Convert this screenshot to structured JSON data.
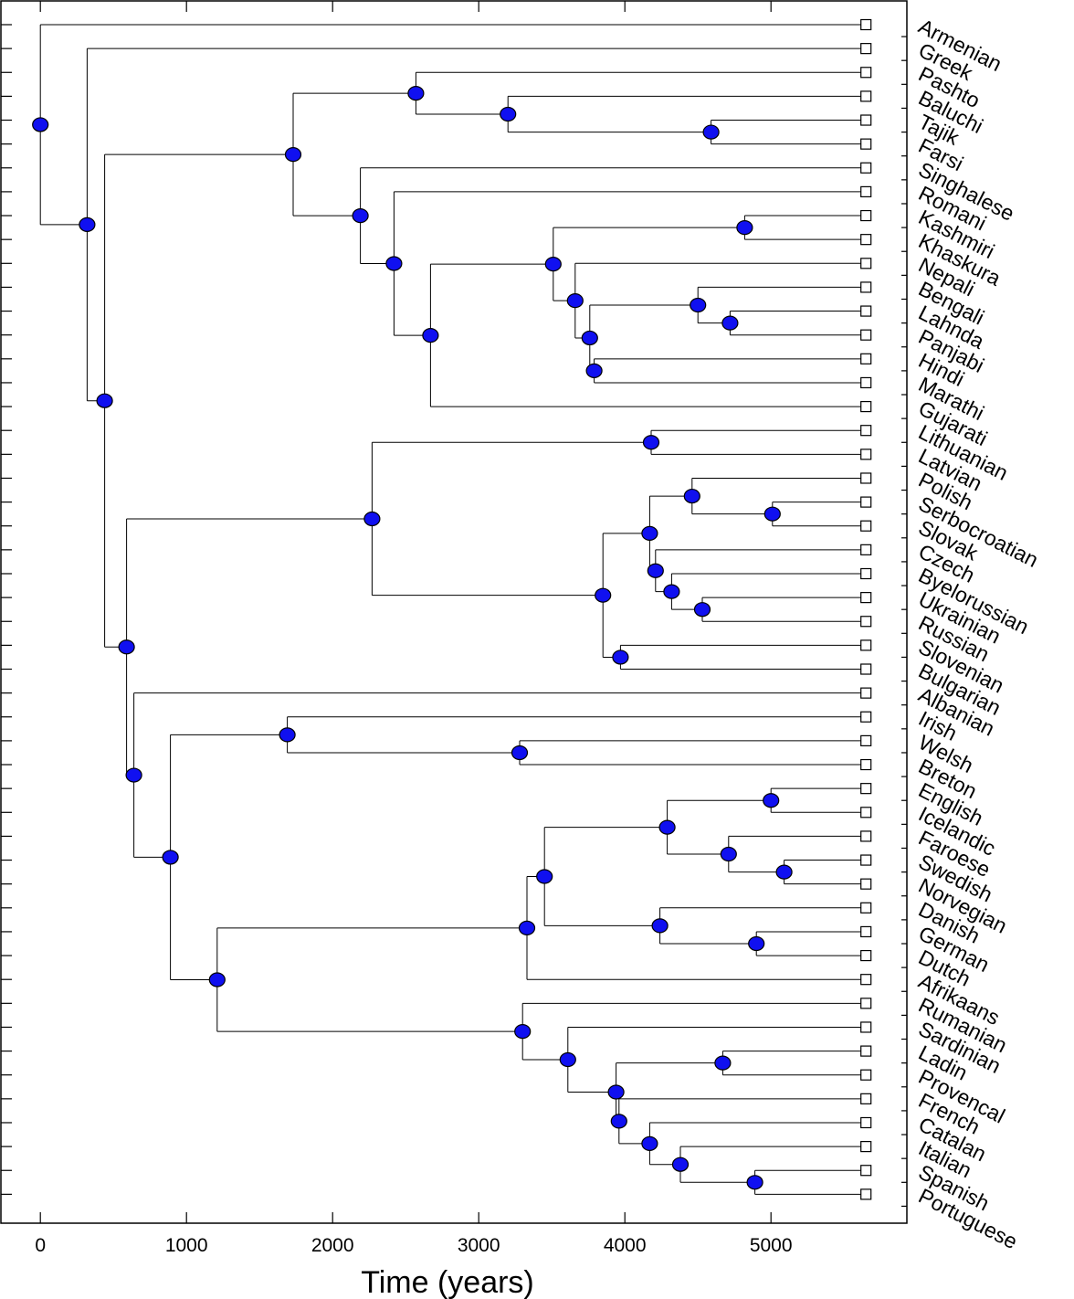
{
  "axis": {
    "xlabel": "Time (years)",
    "xticks": [
      0,
      1000,
      2000,
      3000,
      4000,
      5000
    ],
    "xlim": [
      -270,
      5930
    ],
    "leaf_time": 5650
  },
  "leaves": [
    "Armenian",
    "Greek",
    "Pashto",
    "Baluchi",
    "Tajik",
    "Farsi",
    "Singhalese",
    "Romani",
    "Kashmiri",
    "Khaskura",
    "Nepali",
    "Bengali",
    "Lahnda",
    "Panjabi",
    "Hindi",
    "Marathi",
    "Gujarati",
    "Lithuanian",
    "Latvian",
    "Polish",
    "Serbocroatian",
    "Slovak",
    "Czech",
    "Byelorussian",
    "Ukrainian",
    "Russian",
    "Slovenian",
    "Bulgarian",
    "Albanian",
    "Irish",
    "Welsh",
    "Breton",
    "English",
    "Icelandic",
    "Faroese",
    "Swedish",
    "Norvegian",
    "Danish",
    "German",
    "Dutch",
    "Afrikaans",
    "Rumanian",
    "Sardinian",
    "Ladin",
    "Provencal",
    "French",
    "Catalan",
    "Italian",
    "Spanish",
    "Portuguese"
  ],
  "tree": {
    "t": 0,
    "c": [
      "Armenian",
      {
        "t": 320,
        "c": [
          "Greek",
          {
            "t": 440,
            "c": [
              {
                "t": 1730,
                "c": [
                  {
                    "t": 2570,
                    "c": [
                      "Pashto",
                      {
                        "t": 3200,
                        "c": [
                          "Baluchi",
                          {
                            "t": 4590,
                            "c": [
                              "Tajik",
                              "Farsi"
                            ]
                          }
                        ]
                      }
                    ]
                  },
                  {
                    "t": 2190,
                    "c": [
                      "Singhalese",
                      {
                        "t": 2420,
                        "c": [
                          "Romani",
                          {
                            "t": 2670,
                            "c": [
                              {
                                "t": 3510,
                                "c": [
                                  {
                                    "t": 4820,
                                    "c": [
                                      "Kashmiri",
                                      "Khaskura"
                                    ]
                                  },
                                  {
                                    "t": 3660,
                                    "c": [
                                      "Nepali",
                                      {
                                        "t": 3760,
                                        "c": [
                                          {
                                            "t": 4500,
                                            "c": [
                                              "Bengali",
                                              {
                                                "t": 4720,
                                                "c": [
                                                  "Lahnda",
                                                  "Panjabi"
                                                ]
                                              }
                                            ]
                                          },
                                          {
                                            "t": 3790,
                                            "c": [
                                              "Hindi",
                                              "Marathi"
                                            ]
                                          }
                                        ]
                                      }
                                    ]
                                  }
                                ]
                              },
                              "Gujarati"
                            ]
                          }
                        ]
                      }
                    ]
                  }
                ]
              },
              {
                "t": 590,
                "c": [
                  {
                    "t": 2270,
                    "c": [
                      {
                        "t": 4180,
                        "c": [
                          "Lithuanian",
                          "Latvian"
                        ]
                      },
                      {
                        "t": 3850,
                        "c": [
                          {
                            "t": 4170,
                            "c": [
                              {
                                "t": 4460,
                                "c": [
                                  "Polish",
                                  {
                                    "t": 5010,
                                    "c": [
                                      "Serbocroatian",
                                      "Slovak"
                                    ]
                                  }
                                ]
                              },
                              {
                                "t": 4210,
                                "c": [
                                  "Czech",
                                  {
                                    "t": 4320,
                                    "c": [
                                      "Byelorussian",
                                      {
                                        "t": 4530,
                                        "c": [
                                          "Ukrainian",
                                          "Russian"
                                        ]
                                      }
                                    ]
                                  }
                                ]
                              }
                            ]
                          },
                          {
                            "t": 3970,
                            "c": [
                              "Slovenian",
                              "Bulgarian"
                            ]
                          }
                        ]
                      }
                    ]
                  },
                  {
                    "t": 640,
                    "c": [
                      "Albanian",
                      {
                        "t": 890,
                        "c": [
                          {
                            "t": 1690,
                            "c": [
                              "Irish",
                              {
                                "t": 3280,
                                "c": [
                                  "Welsh",
                                  "Breton"
                                ]
                              }
                            ]
                          },
                          {
                            "t": 1210,
                            "c": [
                              {
                                "t": 3330,
                                "c": [
                                  {
                                    "t": 3450,
                                    "c": [
                                      {
                                        "t": 4290,
                                        "c": [
                                          {
                                            "t": 5000,
                                            "c": [
                                              "English",
                                              "Icelandic"
                                            ]
                                          },
                                          {
                                            "t": 4710,
                                            "c": [
                                              "Faroese",
                                              {
                                                "t": 5090,
                                                "c": [
                                                  "Swedish",
                                                  "Norvegian"
                                                ]
                                              }
                                            ]
                                          }
                                        ]
                                      },
                                      {
                                        "t": 4240,
                                        "c": [
                                          "Danish",
                                          {
                                            "t": 4900,
                                            "c": [
                                              "German",
                                              "Dutch"
                                            ]
                                          }
                                        ]
                                      }
                                    ]
                                  },
                                  "Afrikaans"
                                ]
                              },
                              {
                                "t": 3300,
                                "c": [
                                  "Rumanian",
                                  {
                                    "t": 3610,
                                    "c": [
                                      "Sardinian",
                                      {
                                        "t": 3940,
                                        "c": [
                                          {
                                            "t": 4670,
                                            "c": [
                                              "Ladin",
                                              "Provencal"
                                            ]
                                          },
                                          {
                                            "t": 3960,
                                            "c": [
                                              "French",
                                              {
                                                "t": 4170,
                                                "c": [
                                                  "Catalan",
                                                  {
                                                    "t": 4380,
                                                    "c": [
                                                      "Italian",
                                                      {
                                                        "t": 4890,
                                                        "c": [
                                                          "Spanish",
                                                          "Portuguese"
                                                        ]
                                                      }
                                                    ]
                                                  }
                                                ]
                                              }
                                            ]
                                          }
                                        ]
                                      }
                                    ]
                                  }
                                ]
                              }
                            ]
                          }
                        ]
                      }
                    ]
                  }
                ]
              }
            ]
          }
        ]
      }
    ]
  }
}
